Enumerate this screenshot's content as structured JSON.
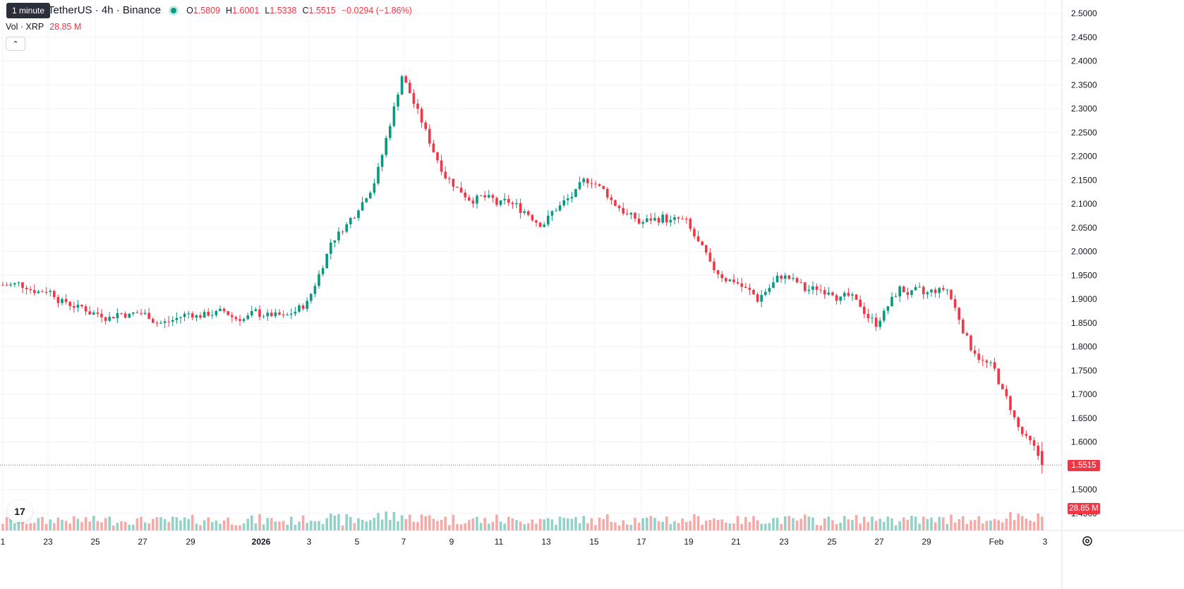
{
  "header": {
    "symbol": "TetherUS · 4h · Binance",
    "tooltip": "1 minute",
    "ohlc": {
      "o_label": "O",
      "o": "1.5809",
      "h_label": "H",
      "h": "1.6001",
      "l_label": "L",
      "l": "1.5338",
      "c_label": "C",
      "c": "1.5515",
      "change": "−0.0294 (−1.86%)"
    },
    "volume_label": "Vol · XRP",
    "volume_value": "28.85 M"
  },
  "price_axis": {
    "labels": [
      "2.5000",
      "2.4500",
      "2.4000",
      "2.3500",
      "2.3000",
      "2.2500",
      "2.2000",
      "2.1500",
      "2.1000",
      "2.0500",
      "2.0000",
      "1.9500",
      "1.9000",
      "1.8500",
      "1.8000",
      "1.7500",
      "1.7000",
      "1.6500",
      "1.6000",
      "1.5000",
      "1.4500"
    ],
    "last_price_tag": "1.5515",
    "volume_tag": "28.85 M"
  },
  "time_axis": {
    "labels": [
      "1",
      "23",
      "25",
      "27",
      "29",
      "2026",
      "3",
      "5",
      "7",
      "9",
      "11",
      "13",
      "15",
      "17",
      "19",
      "21",
      "23",
      "25",
      "27",
      "29",
      "Feb",
      "3"
    ]
  },
  "colors": {
    "up": "#089981",
    "down": "#f23645",
    "up_vol": "#92d2c8",
    "down_vol": "#f7a9a7",
    "grid": "#f0f3fa"
  },
  "chart_data": {
    "type": "candlestick",
    "title": "TetherUS · 4h · Binance",
    "ylim": [
      1.43,
      2.51
    ],
    "grid": true,
    "anchors": [
      {
        "date": "Dec 21",
        "close": 1.93
      },
      {
        "date": "Dec 22",
        "close": 1.92
      },
      {
        "date": "Dec 23",
        "close": 1.89
      },
      {
        "date": "Dec 24",
        "close": 1.87
      },
      {
        "date": "Dec 25",
        "close": 1.87
      },
      {
        "date": "Dec 26",
        "close": 1.87
      },
      {
        "date": "Dec 27",
        "close": 1.85
      },
      {
        "date": "Dec 28",
        "close": 1.87
      },
      {
        "date": "Dec 29",
        "close": 1.87
      },
      {
        "date": "Dec 30",
        "close": 1.86
      },
      {
        "date": "Dec 31",
        "close": 1.87
      },
      {
        "date": "Jan 1",
        "close": 1.86
      },
      {
        "date": "Jan 2",
        "close": 1.89
      },
      {
        "date": "Jan 3",
        "close": 2.02
      },
      {
        "date": "Jan 4",
        "close": 2.08
      },
      {
        "date": "Jan 5",
        "close": 2.17
      },
      {
        "date": "Jan 6",
        "close": 2.37
      },
      {
        "date": "Jan 7",
        "close": 2.25
      },
      {
        "date": "Jan 8",
        "close": 2.15
      },
      {
        "date": "Jan 9",
        "close": 2.11
      },
      {
        "date": "Jan 10",
        "close": 2.1
      },
      {
        "date": "Jan 11",
        "close": 2.09
      },
      {
        "date": "Jan 12",
        "close": 2.06
      },
      {
        "date": "Jan 13",
        "close": 2.11
      },
      {
        "date": "Jan 14",
        "close": 2.15
      },
      {
        "date": "Jan 15",
        "close": 2.1
      },
      {
        "date": "Jan 16",
        "close": 2.06
      },
      {
        "date": "Jan 17",
        "close": 2.07
      },
      {
        "date": "Jan 18",
        "close": 2.06
      },
      {
        "date": "Jan 19",
        "close": 1.97
      },
      {
        "date": "Jan 20",
        "close": 1.94
      },
      {
        "date": "Jan 21",
        "close": 1.9
      },
      {
        "date": "Jan 22",
        "close": 1.95
      },
      {
        "date": "Jan 23",
        "close": 1.92
      },
      {
        "date": "Jan 24",
        "close": 1.92
      },
      {
        "date": "Jan 25",
        "close": 1.9
      },
      {
        "date": "Jan 26",
        "close": 1.85
      },
      {
        "date": "Jan 27",
        "close": 1.92
      },
      {
        "date": "Jan 28",
        "close": 1.91
      },
      {
        "date": "Jan 29",
        "close": 1.92
      },
      {
        "date": "Jan 30",
        "close": 1.8
      },
      {
        "date": "Jan 31",
        "close": 1.75
      },
      {
        "date": "Feb 1",
        "close": 1.63
      },
      {
        "date": "Feb 2",
        "close": 1.5515
      }
    ],
    "last": {
      "open": 1.5809,
      "high": 1.6001,
      "low": 1.5338,
      "close": 1.5515,
      "volume": "28.85M"
    }
  }
}
